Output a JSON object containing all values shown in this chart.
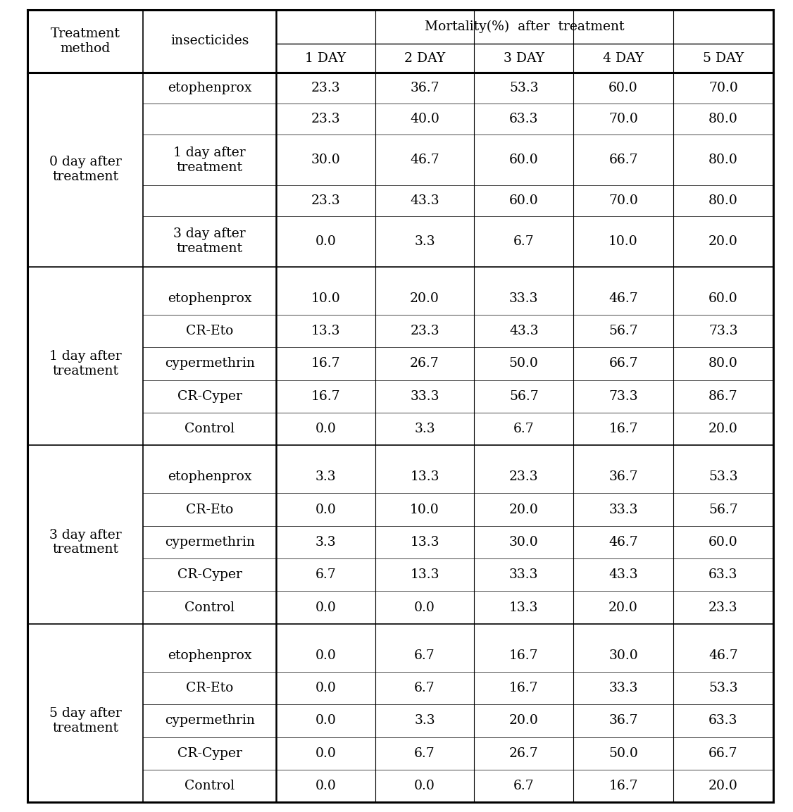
{
  "sections": [
    {
      "treatment": "0 day after\ntreatment",
      "rows": [
        {
          "insecticide": "etophenprox",
          "values": [
            23.3,
            36.7,
            53.3,
            60.0,
            70.0
          ]
        },
        {
          "insecticide": "",
          "values": [
            23.3,
            40.0,
            63.3,
            70.0,
            80.0
          ]
        },
        {
          "insecticide": "1 day after\ntreatment",
          "values": [
            30.0,
            46.7,
            60.0,
            66.7,
            80.0
          ]
        },
        {
          "insecticide": "",
          "values": [
            23.3,
            43.3,
            60.0,
            70.0,
            80.0
          ]
        },
        {
          "insecticide": "3 day after\ntreatment",
          "values": [
            0.0,
            3.3,
            6.7,
            10.0,
            20.0
          ]
        }
      ]
    },
    {
      "treatment": "1 day after\ntreatment",
      "rows": [
        {
          "insecticide": "etophenprox",
          "values": [
            10.0,
            20.0,
            33.3,
            46.7,
            60.0
          ]
        },
        {
          "insecticide": "CR-Eto",
          "values": [
            13.3,
            23.3,
            43.3,
            56.7,
            73.3
          ]
        },
        {
          "insecticide": "cypermethrin",
          "values": [
            16.7,
            26.7,
            50.0,
            66.7,
            80.0
          ]
        },
        {
          "insecticide": "CR-Cyper",
          "values": [
            16.7,
            33.3,
            56.7,
            73.3,
            86.7
          ]
        },
        {
          "insecticide": "Control",
          "values": [
            0.0,
            3.3,
            6.7,
            16.7,
            20.0
          ]
        }
      ]
    },
    {
      "treatment": "3 day after\ntreatment",
      "rows": [
        {
          "insecticide": "etophenprox",
          "values": [
            3.3,
            13.3,
            23.3,
            36.7,
            53.3
          ]
        },
        {
          "insecticide": "CR-Eto",
          "values": [
            0.0,
            10.0,
            20.0,
            33.3,
            56.7
          ]
        },
        {
          "insecticide": "cypermethrin",
          "values": [
            3.3,
            13.3,
            30.0,
            46.7,
            60.0
          ]
        },
        {
          "insecticide": "CR-Cyper",
          "values": [
            6.7,
            13.3,
            33.3,
            43.3,
            63.3
          ]
        },
        {
          "insecticide": "Control",
          "values": [
            0.0,
            0.0,
            13.3,
            20.0,
            23.3
          ]
        }
      ]
    },
    {
      "treatment": "5 day after\ntreatment",
      "rows": [
        {
          "insecticide": "etophenprox",
          "values": [
            0.0,
            6.7,
            16.7,
            30.0,
            46.7
          ]
        },
        {
          "insecticide": "CR-Eto",
          "values": [
            0.0,
            6.7,
            16.7,
            33.3,
            53.3
          ]
        },
        {
          "insecticide": "cypermethrin",
          "values": [
            0.0,
            3.3,
            20.0,
            36.7,
            63.3
          ]
        },
        {
          "insecticide": "CR-Cyper",
          "values": [
            0.0,
            6.7,
            26.7,
            50.0,
            66.7
          ]
        },
        {
          "insecticide": "Control",
          "values": [
            0.0,
            0.0,
            6.7,
            16.7,
            20.0
          ]
        }
      ]
    }
  ],
  "day_labels": [
    "1 DAY",
    "2 DAY",
    "3 DAY",
    "4 DAY",
    "5 DAY"
  ],
  "mortality_header": "Mortality(%)  after  treatment",
  "treatment_header": "Treatment\nmethod",
  "insecticides_header": "insecticides",
  "bg_color": "#ffffff",
  "text_color": "#000000",
  "font_size": 13.5,
  "header_font_size": 13.5
}
